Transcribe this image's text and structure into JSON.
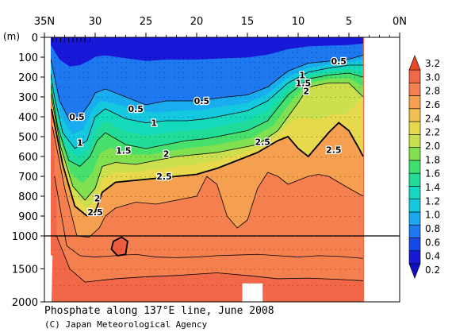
{
  "chart_data": {
    "type": "heatmap",
    "title": "Phosphate along 137°E line, June 2008",
    "credit": "(C) Japan Meteorological Agency",
    "y_unit_label": "(m)",
    "x_ticks": [
      {
        "lat": 35,
        "label": "35N"
      },
      {
        "lat": 30,
        "label": "30"
      },
      {
        "lat": 25,
        "label": "25"
      },
      {
        "lat": 20,
        "label": "20"
      },
      {
        "lat": 15,
        "label": "15"
      },
      {
        "lat": 10,
        "label": "10"
      },
      {
        "lat": 5,
        "label": "5"
      },
      {
        "lat": 0,
        "label": "0N"
      }
    ],
    "y_ticks_upper": [
      0,
      100,
      200,
      300,
      400,
      500,
      600,
      700,
      800,
      900,
      1000
    ],
    "y_ticks_lower": [
      1500,
      2000
    ],
    "y_tick_labels": [
      "0",
      "100",
      "200",
      "300",
      "400",
      "500",
      "600",
      "700",
      "800",
      "900",
      "1000",
      "1500",
      "2000"
    ],
    "xlim": [
      35,
      0
    ],
    "ylim": [
      0,
      2000
    ],
    "depth_break": 1000,
    "colorbar": {
      "levels": [
        0.2,
        0.4,
        0.6,
        0.8,
        1.0,
        1.2,
        1.4,
        1.6,
        1.8,
        2.0,
        2.2,
        2.4,
        2.6,
        2.8,
        3.0,
        3.2
      ],
      "labels": [
        "0.2",
        "0.4",
        "0.6",
        "0.8",
        "1.0",
        "1.2",
        "1.4",
        "1.6",
        "1.8",
        "2.0",
        "2.2",
        "2.4",
        "2.6",
        "2.8",
        "3.0",
        "3.2"
      ],
      "colors": [
        "#1818d8",
        "#1448e8",
        "#1e78f0",
        "#1aa8f0",
        "#14c8e0",
        "#14d8c0",
        "#20dc98",
        "#40e070",
        "#80e050",
        "#c8e050",
        "#e8d84c",
        "#f0c050",
        "#f4a050",
        "#f48050",
        "#f06848"
      ]
    },
    "contour_labels": [
      {
        "text": "0.5",
        "lat": 31.8,
        "depth": 400
      },
      {
        "text": "1",
        "lat": 31.5,
        "depth": 530
      },
      {
        "text": "2",
        "lat": 29.8,
        "depth": 810
      },
      {
        "text": "2.5",
        "lat": 30.0,
        "depth": 880
      },
      {
        "text": "0.5",
        "lat": 26.0,
        "depth": 360
      },
      {
        "text": "1",
        "lat": 24.2,
        "depth": 430
      },
      {
        "text": "1.5",
        "lat": 27.2,
        "depth": 570
      },
      {
        "text": "2",
        "lat": 23.0,
        "depth": 585
      },
      {
        "text": "2.5",
        "lat": 23.2,
        "depth": 700
      },
      {
        "text": "0.5",
        "lat": 19.5,
        "depth": 320
      },
      {
        "text": "2.5",
        "lat": 13.5,
        "depth": 525
      },
      {
        "text": "2.5",
        "lat": 6.5,
        "depth": 565
      },
      {
        "text": "0.5",
        "lat": 6.0,
        "depth": 120
      },
      {
        "text": "1",
        "lat": 9.6,
        "depth": 190
      },
      {
        "text": "1.5",
        "lat": 9.5,
        "depth": 230
      },
      {
        "text": "2",
        "lat": 9.2,
        "depth": 270
      }
    ],
    "contour_lines": [
      {
        "value": 0.5,
        "points": [
          [
            34.6,
            60
          ],
          [
            34.2,
            150
          ],
          [
            33.5,
            320
          ],
          [
            32.5,
            420
          ],
          [
            31.5,
            400
          ],
          [
            30.5,
            330
          ],
          [
            30,
            280
          ],
          [
            29,
            260
          ],
          [
            27,
            300
          ],
          [
            25,
            340
          ],
          [
            23,
            320
          ],
          [
            20,
            320
          ],
          [
            17,
            300
          ],
          [
            15,
            290
          ],
          [
            13,
            250
          ],
          [
            11,
            170
          ],
          [
            9,
            130
          ],
          [
            7,
            120
          ],
          [
            5,
            110
          ],
          [
            3.6,
            90
          ]
        ]
      },
      {
        "value": 1.0,
        "points": [
          [
            34.6,
            120
          ],
          [
            34.0,
            300
          ],
          [
            33.2,
            480
          ],
          [
            32.0,
            560
          ],
          [
            30.8,
            520
          ],
          [
            30.0,
            400
          ],
          [
            29,
            360
          ],
          [
            27,
            410
          ],
          [
            25,
            430
          ],
          [
            23,
            420
          ],
          [
            21,
            420
          ],
          [
            19,
            410
          ],
          [
            17,
            390
          ],
          [
            15,
            370
          ],
          [
            13,
            320
          ],
          [
            11,
            230
          ],
          [
            9,
            175
          ],
          [
            7,
            155
          ],
          [
            5,
            140
          ],
          [
            3.6,
            140
          ]
        ]
      },
      {
        "value": 1.5,
        "points": [
          [
            34.5,
            200
          ],
          [
            33.7,
            450
          ],
          [
            32.6,
            620
          ],
          [
            31.5,
            650
          ],
          [
            30.5,
            600
          ],
          [
            29.8,
            520
          ],
          [
            29,
            480
          ],
          [
            27,
            540
          ],
          [
            25,
            560
          ],
          [
            23,
            540
          ],
          [
            21,
            520
          ],
          [
            19,
            510
          ],
          [
            17,
            490
          ],
          [
            15,
            470
          ],
          [
            13,
            420
          ],
          [
            11,
            290
          ],
          [
            9,
            210
          ],
          [
            7,
            190
          ],
          [
            5,
            180
          ],
          [
            3.6,
            200
          ]
        ]
      },
      {
        "value": 2.0,
        "points": [
          [
            34.4,
            280
          ],
          [
            33.4,
            550
          ],
          [
            32.2,
            750
          ],
          [
            31.0,
            820
          ],
          [
            30.0,
            760
          ],
          [
            29.3,
            650
          ],
          [
            28,
            630
          ],
          [
            26,
            640
          ],
          [
            24,
            620
          ],
          [
            22,
            600
          ],
          [
            20,
            590
          ],
          [
            18,
            580
          ],
          [
            16,
            560
          ],
          [
            14,
            540
          ],
          [
            12,
            470
          ],
          [
            10,
            330
          ],
          [
            9,
            250
          ],
          [
            7,
            230
          ],
          [
            5,
            230
          ],
          [
            3.6,
            300
          ]
        ]
      },
      {
        "value": 2.5,
        "points": [
          [
            34.3,
            360
          ],
          [
            33.2,
            640
          ],
          [
            32.0,
            850
          ],
          [
            30.8,
            900
          ],
          [
            30.0,
            880
          ],
          [
            29.3,
            780
          ],
          [
            28,
            730
          ],
          [
            26,
            720
          ],
          [
            24,
            710
          ],
          [
            22,
            700
          ],
          [
            20,
            690
          ],
          [
            18,
            660
          ],
          [
            16,
            620
          ],
          [
            14,
            580
          ],
          [
            12,
            520
          ],
          [
            11,
            500
          ],
          [
            10,
            560
          ],
          [
            9,
            600
          ],
          [
            8,
            540
          ],
          [
            7,
            480
          ],
          [
            6,
            430
          ],
          [
            5,
            470
          ],
          [
            4,
            560
          ],
          [
            3.6,
            600
          ]
        ]
      },
      {
        "value": 2.8,
        "points": [
          [
            34.2,
            450
          ],
          [
            33.0,
            760
          ],
          [
            31.8,
            1000
          ],
          [
            30.6,
            1020
          ],
          [
            29.6,
            960
          ],
          [
            29,
            900
          ],
          [
            28,
            860
          ],
          [
            26,
            830
          ],
          [
            24,
            840
          ],
          [
            22,
            820
          ],
          [
            20,
            800
          ],
          [
            19,
            700
          ],
          [
            18,
            740
          ],
          [
            17,
            900
          ],
          [
            16,
            960
          ],
          [
            15,
            920
          ],
          [
            14,
            760
          ],
          [
            13,
            680
          ],
          [
            12,
            700
          ],
          [
            11,
            740
          ],
          [
            10,
            720
          ],
          [
            9,
            700
          ],
          [
            8,
            690
          ],
          [
            7,
            700
          ],
          [
            5,
            760
          ],
          [
            3.6,
            800
          ]
        ]
      },
      {
        "value": 3.0,
        "points": [
          [
            34.0,
            700
          ],
          [
            32.8,
            1150
          ],
          [
            31.5,
            1300
          ],
          [
            30.0,
            1320
          ],
          [
            28,
            1300
          ],
          [
            26,
            1280
          ],
          [
            24,
            1320
          ],
          [
            22,
            1330
          ],
          [
            20,
            1320
          ],
          [
            18,
            1300
          ],
          [
            16,
            1290
          ],
          [
            14,
            1280
          ],
          [
            12,
            1300
          ],
          [
            10,
            1320
          ],
          [
            8,
            1300
          ],
          [
            6,
            1310
          ],
          [
            3.6,
            1340
          ]
        ]
      },
      {
        "value": 3.1,
        "points": [
          [
            33.8,
            1000
          ],
          [
            32.5,
            1500
          ],
          [
            31,
            1700
          ],
          [
            28,
            1650
          ],
          [
            25,
            1620
          ],
          [
            22,
            1600
          ],
          [
            20,
            1580
          ],
          [
            18,
            1560
          ],
          [
            15,
            1600
          ],
          [
            12,
            1650
          ],
          [
            9,
            1640
          ],
          [
            6,
            1660
          ],
          [
            3.6,
            1680
          ]
        ]
      }
    ],
    "closed_contours": [
      {
        "value": 3.1,
        "points": [
          [
            28.2,
            1080
          ],
          [
            27.4,
            1020
          ],
          [
            26.8,
            1080
          ],
          [
            27.0,
            1280
          ],
          [
            27.8,
            1300
          ],
          [
            28.4,
            1200
          ]
        ]
      }
    ],
    "ctd_stations_lat": [
      34.2,
      33.8,
      33.4,
      33.0,
      32.6,
      32.2,
      31.8,
      31.4,
      31.0,
      30.5
    ],
    "masked_regions": [
      {
        "lat_from": 15.5,
        "lat_to": 13.5,
        "depth_from": 1720,
        "depth_to": 2000
      }
    ],
    "data_extent_lat": [
      34.7,
      3.5
    ]
  }
}
